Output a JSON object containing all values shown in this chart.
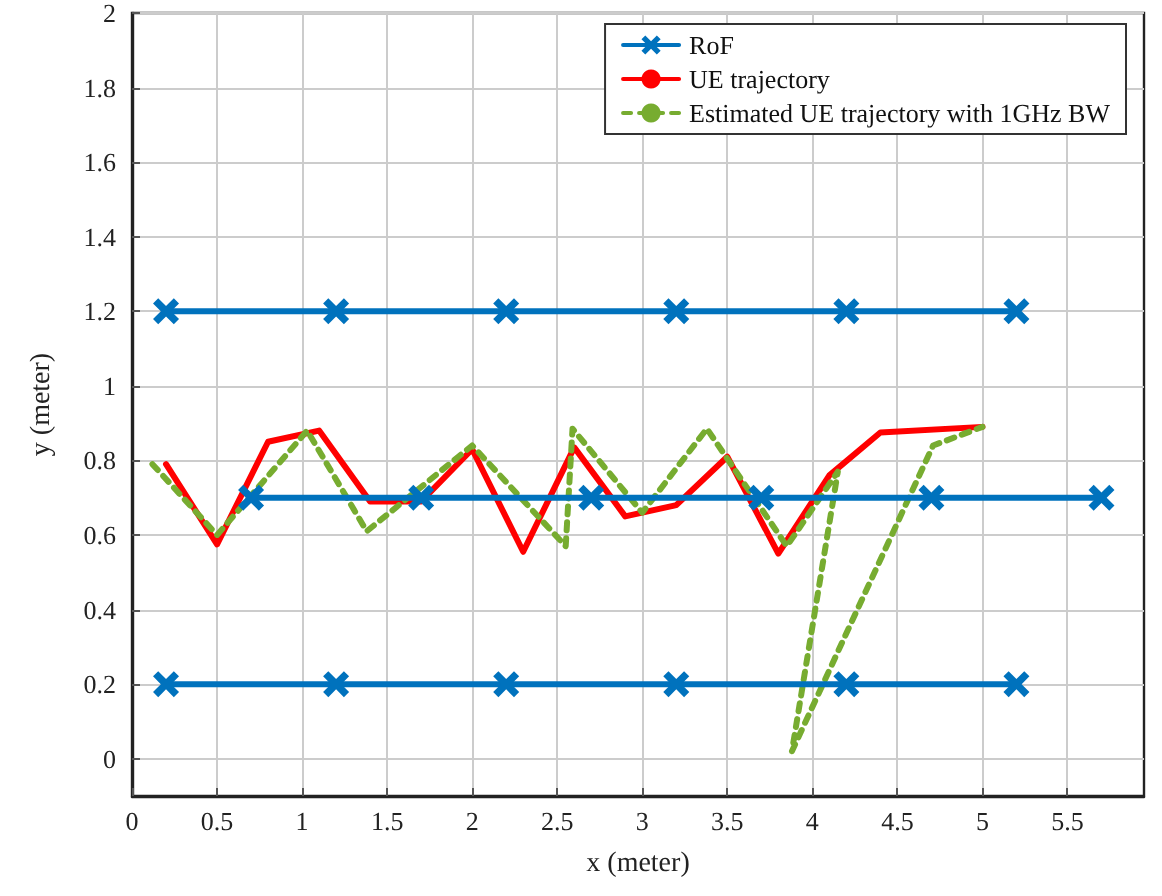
{
  "chart_data": {
    "type": "line",
    "xlabel": "x (meter)",
    "ylabel": "y (meter)",
    "xlim": [
      0,
      5.95
    ],
    "xticks": [
      0,
      0.5,
      1,
      1.5,
      2,
      2.5,
      3,
      3.5,
      4,
      4.5,
      5,
      5.5
    ],
    "ylim": [
      -0.1,
      2
    ],
    "yticks": [
      0,
      0.2,
      0.4,
      0.6,
      0.8,
      1,
      1.2,
      1.4,
      1.6,
      1.8,
      2
    ],
    "grid": true,
    "legend": "top right",
    "series": [
      {
        "name": "RoF",
        "color": "#0072bd",
        "marker": "cross",
        "line_style": "solid",
        "x": [
          0.2,
          1.2,
          2.2,
          3.2,
          4.2,
          5.2
        ],
        "values": [
          1.2,
          1.2,
          1.2,
          1.2,
          1.2,
          1.2
        ]
      },
      {
        "name": "UE trajectory",
        "color": "#ff0000",
        "marker": "none",
        "line_style": "solid",
        "x": [
          0.2,
          0.5,
          0.8,
          1.1,
          1.4,
          1.7,
          2.0,
          2.3,
          2.6,
          2.9,
          3.2,
          3.5,
          3.8,
          4.1,
          4.4,
          5.0
        ],
        "values": [
          0.79,
          0.575,
          0.85,
          0.88,
          0.69,
          0.69,
          0.83,
          0.555,
          0.835,
          0.65,
          0.68,
          0.81,
          0.55,
          0.76,
          0.875,
          0.89
        ]
      },
      {
        "name": "Estimated UE trajectory with 1GHz BW",
        "color": "#77ac30",
        "marker": "none",
        "line_style": "dashed",
        "x": [
          0.12,
          0.5,
          1.03,
          1.38,
          2.0,
          2.55,
          2.59,
          3.0,
          3.38,
          3.85,
          4.15,
          3.88,
          4.71,
          5.0
        ],
        "values": [
          0.79,
          0.6,
          0.88,
          0.61,
          0.84,
          0.57,
          0.885,
          0.66,
          0.885,
          0.57,
          0.77,
          0.02,
          0.84,
          0.89
        ]
      },
      {
        "color": "#0072bd",
        "marker": "cross",
        "line_style": "solid",
        "x": [
          0.7,
          1.7,
          2.7,
          3.7,
          4.7,
          5.7
        ],
        "values": [
          0.7,
          0.7,
          0.7,
          0.7,
          0.7,
          0.7
        ]
      },
      {
        "color": "#0072bd",
        "marker": "cross",
        "line_style": "solid",
        "x": [
          0.2,
          1.2,
          2.2,
          3.2,
          4.2,
          5.2
        ],
        "values": [
          0.2,
          0.2,
          0.2,
          0.2,
          0.2,
          0.2
        ]
      }
    ]
  }
}
